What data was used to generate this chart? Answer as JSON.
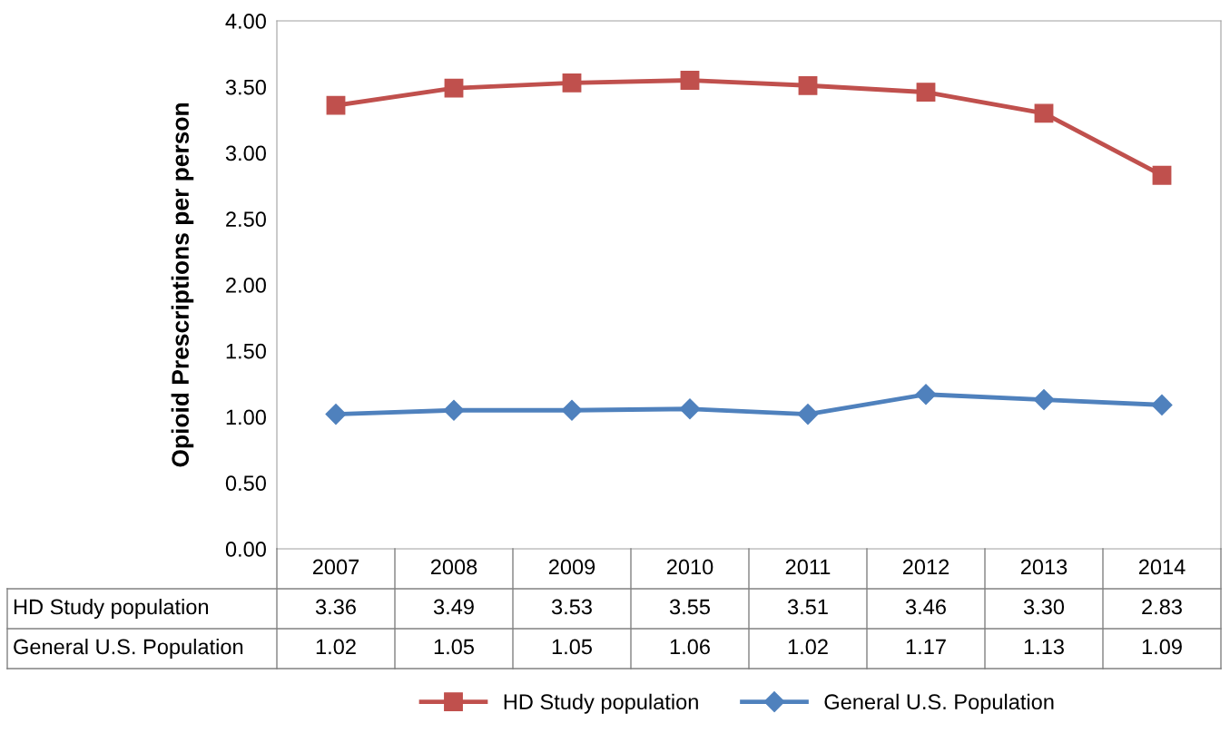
{
  "chart_data": {
    "type": "line",
    "ylabel": "Opioid Prescriptions per person",
    "categories": [
      "2007",
      "2008",
      "2009",
      "2010",
      "2011",
      "2012",
      "2013",
      "2014"
    ],
    "series": [
      {
        "name": "HD Study population",
        "color": "#c0504d",
        "marker": "square",
        "values": [
          3.36,
          3.49,
          3.53,
          3.55,
          3.51,
          3.46,
          3.3,
          2.83
        ],
        "value_labels": [
          "3.36",
          "3.49",
          "3.53",
          "3.55",
          "3.51",
          "3.46",
          "3.30",
          "2.83"
        ]
      },
      {
        "name": "General U.S. Population",
        "color": "#4f81bd",
        "marker": "diamond",
        "values": [
          1.02,
          1.05,
          1.05,
          1.06,
          1.02,
          1.17,
          1.13,
          1.09
        ],
        "value_labels": [
          "1.02",
          "1.05",
          "1.05",
          "1.06",
          "1.02",
          "1.17",
          "1.13",
          "1.09"
        ]
      }
    ],
    "ylim": [
      0,
      4
    ],
    "yticks": [
      {
        "value": 0,
        "label": "0.00"
      },
      {
        "value": 0.5,
        "label": "0.50"
      },
      {
        "value": 1,
        "label": "1.00"
      },
      {
        "value": 1.5,
        "label": "1.50"
      },
      {
        "value": 2,
        "label": "2.00"
      },
      {
        "value": 2.5,
        "label": "2.50"
      },
      {
        "value": 3,
        "label": "3.00"
      },
      {
        "value": 3.5,
        "label": "3.50"
      },
      {
        "value": 4,
        "label": "4.00"
      }
    ],
    "grid": false,
    "legend": "bottom",
    "line_style": "solid"
  }
}
